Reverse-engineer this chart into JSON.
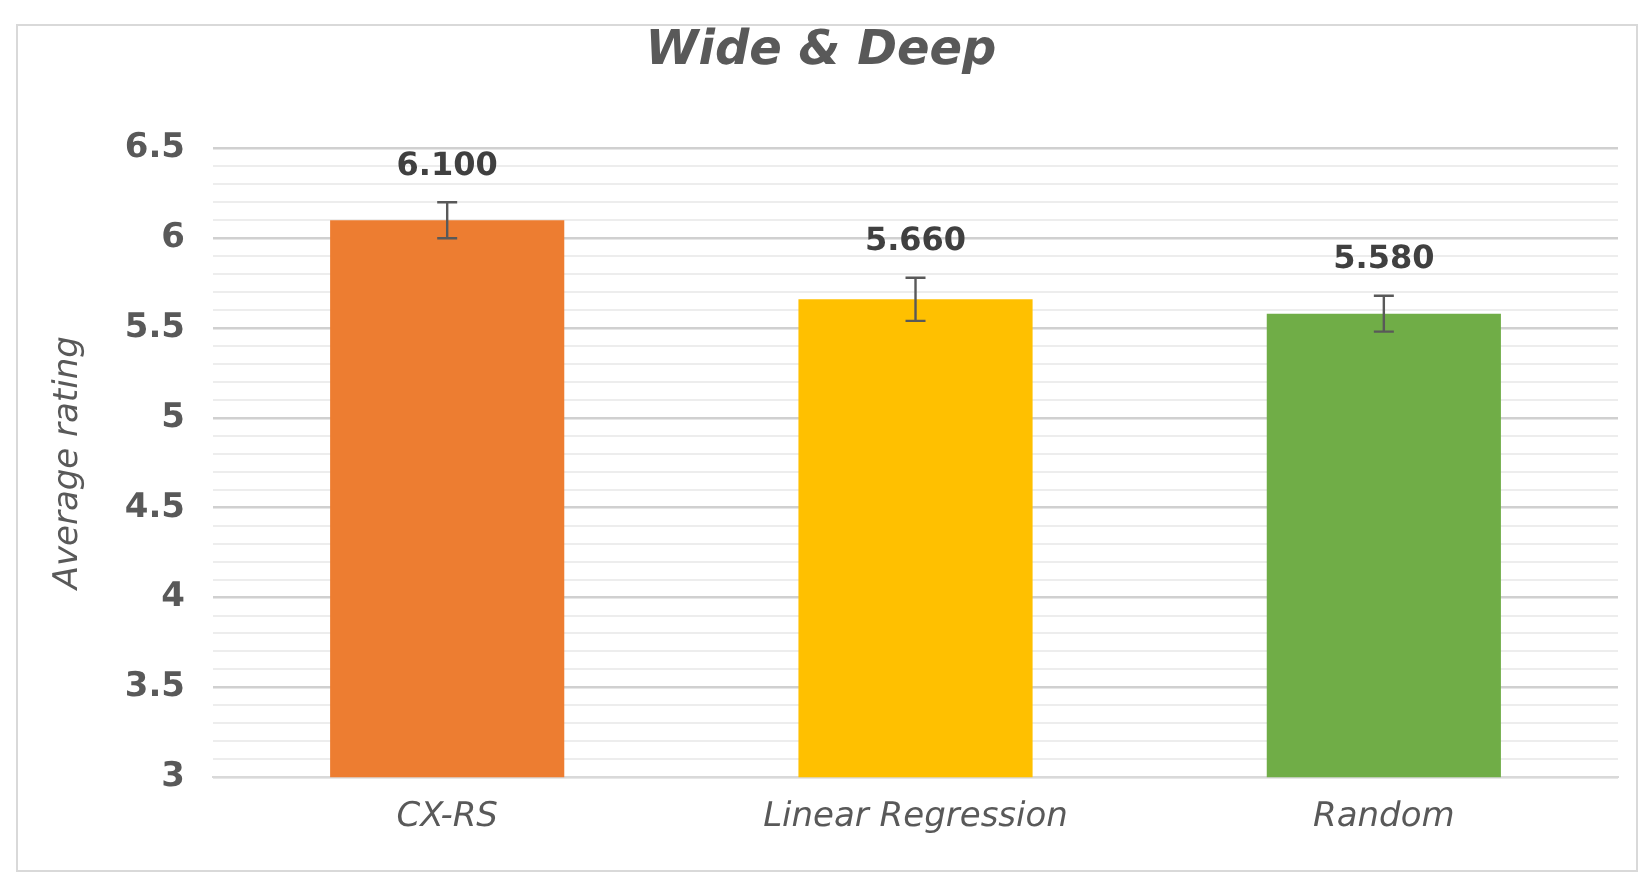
{
  "chart_data": {
    "type": "bar",
    "title": "Wide & Deep",
    "ylabel": "Average rating",
    "categories": [
      "CX-RS",
      "Linear Regression",
      "Random"
    ],
    "values": [
      6.1,
      5.66,
      5.58
    ],
    "colors": [
      "#ed7d31",
      "#ffc000",
      "#70ad47"
    ],
    "errors": [
      0.1,
      0.12,
      0.1
    ],
    "value_labels": [
      "6.100",
      "5.660",
      "5.580"
    ],
    "ylim": [
      3,
      6.5
    ],
    "yticks": [
      3,
      {
        "value": 3.1,
        "label": null
      },
      {
        "value": 3.2,
        "label": null
      },
      {
        "value": 3.3,
        "label": null
      },
      {
        "value": 3.4,
        "label": null
      },
      3.5,
      {
        "value": 3.6,
        "label": null
      },
      {
        "value": 3.7,
        "label": null
      },
      {
        "value": 3.8,
        "label": null
      },
      {
        "value": 3.9,
        "label": null
      },
      4,
      {
        "value": 4.1,
        "label": null
      },
      {
        "value": 4.2,
        "label": null
      },
      {
        "value": 4.3,
        "label": null
      },
      {
        "value": 4.4,
        "label": null
      },
      4.5,
      {
        "value": 4.6,
        "label": null
      },
      {
        "value": 4.7,
        "label": null
      },
      {
        "value": 4.8,
        "label": null
      },
      {
        "value": 4.9,
        "label": null
      },
      5,
      {
        "value": 5.1,
        "label": null
      },
      {
        "value": 5.2,
        "label": null
      },
      {
        "value": 5.3,
        "label": null
      },
      {
        "value": 5.4,
        "label": null
      },
      5.5,
      {
        "value": 5.6,
        "label": null
      },
      {
        "value": 5.7,
        "label": null
      },
      {
        "value": 5.8,
        "label": null
      },
      {
        "value": 5.9,
        "label": null
      },
      6,
      {
        "value": 6.1,
        "label": null
      },
      {
        "value": 6.2,
        "label": null
      },
      {
        "value": 6.3,
        "label": null
      },
      {
        "value": 6.4,
        "label": null
      },
      6.5
    ],
    "grid": "y"
  }
}
